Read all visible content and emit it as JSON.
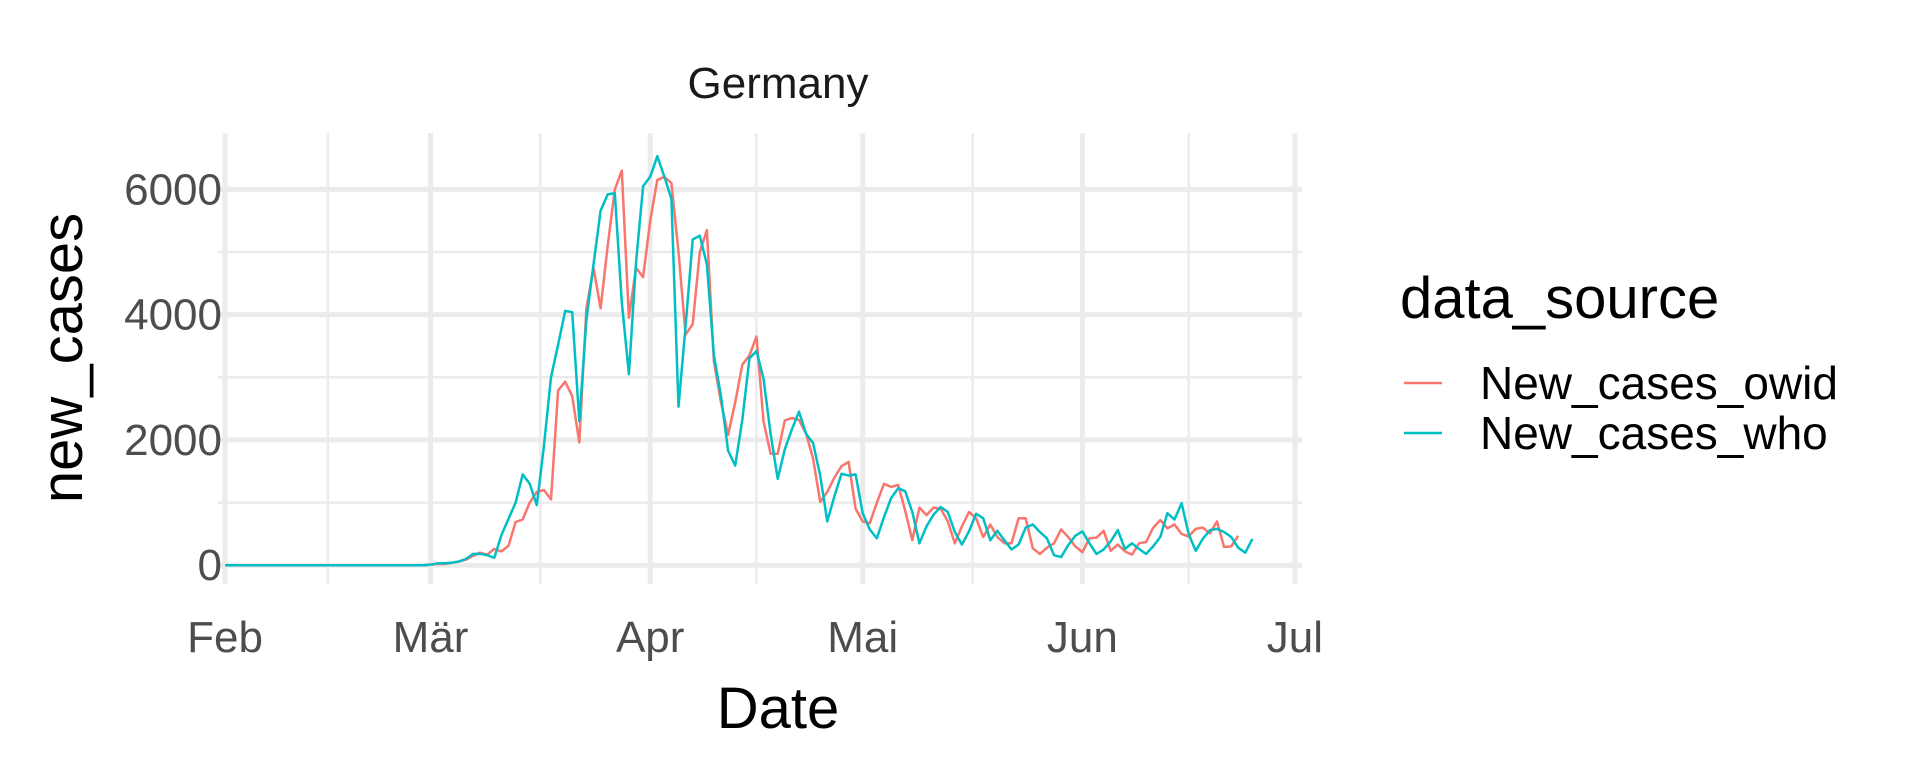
{
  "chart_data": {
    "type": "line",
    "facet_label": "Germany",
    "xlabel": "Date",
    "ylabel": "new_cases",
    "x_tick_labels": [
      "Feb",
      "Mär",
      "Apr",
      "Mai",
      "Jun",
      "Jul"
    ],
    "y_tick_labels": [
      "0",
      "2000",
      "4000",
      "6000"
    ],
    "ylim": [
      -300,
      6900
    ],
    "xlim": [
      "2020-01-31",
      "2020-07-02"
    ],
    "grid": true,
    "legend_position": "right",
    "legend_title": "data_source",
    "series": [
      {
        "name": "New_cases_owid",
        "color": "#F8766D",
        "start_date": "2020-02-01",
        "values": [
          0,
          0,
          0,
          0,
          0,
          0,
          0,
          0,
          0,
          0,
          0,
          0,
          0,
          0,
          0,
          0,
          0,
          0,
          0,
          0,
          0,
          0,
          0,
          0,
          0,
          0,
          0,
          0,
          0,
          10,
          20,
          20,
          40,
          60,
          90,
          150,
          200,
          170,
          260,
          220,
          310,
          690,
          730,
          1000,
          1170,
          1200,
          1050,
          2790,
          2930,
          2700,
          1960,
          4100,
          4750,
          4100,
          5100,
          6000,
          6300,
          3950,
          4750,
          4600,
          5500,
          6150,
          6200,
          6100,
          5000,
          3680,
          3850,
          5000,
          5350,
          3250,
          2600,
          2080,
          2600,
          3200,
          3350,
          3650,
          2300,
          1780,
          1780,
          2310,
          2350,
          2320,
          2100,
          1700,
          1010,
          1170,
          1400,
          1580,
          1650,
          900,
          700,
          670,
          1000,
          1300,
          1250,
          1280,
          870,
          400,
          920,
          800,
          920,
          900,
          700,
          350,
          620,
          850,
          750,
          450,
          650,
          450,
          350,
          350,
          750,
          750,
          270,
          180,
          280,
          350,
          570,
          450,
          300,
          210,
          430,
          440,
          550,
          230,
          330,
          220,
          170,
          350,
          370,
          600,
          720,
          590,
          650,
          500,
          460,
          580,
          600,
          510,
          700,
          290,
          300,
          470
        ]
      },
      {
        "name": "New_cases_who",
        "color": "#00BFC4",
        "start_date": "2020-02-01",
        "values": [
          0,
          0,
          0,
          0,
          0,
          0,
          0,
          0,
          0,
          0,
          0,
          0,
          0,
          0,
          0,
          0,
          0,
          0,
          0,
          0,
          0,
          0,
          0,
          0,
          0,
          0,
          0,
          0,
          0,
          10,
          30,
          30,
          40,
          60,
          100,
          180,
          180,
          160,
          120,
          480,
          740,
          1000,
          1450,
          1300,
          960,
          1900,
          3000,
          3520,
          4060,
          4040,
          2300,
          3920,
          4800,
          5660,
          5920,
          5940,
          4200,
          3050,
          4830,
          6050,
          6200,
          6530,
          6200,
          5850,
          2530,
          3820,
          5200,
          5260,
          4800,
          3350,
          2700,
          1830,
          1590,
          2320,
          3300,
          3420,
          2980,
          2100,
          1380,
          1850,
          2170,
          2450,
          2100,
          1950,
          1430,
          700,
          1100,
          1460,
          1430,
          1450,
          830,
          570,
          430,
          770,
          1070,
          1230,
          1180,
          850,
          350,
          620,
          810,
          930,
          850,
          530,
          330,
          540,
          820,
          750,
          400,
          550,
          400,
          250,
          330,
          600,
          650,
          530,
          430,
          160,
          130,
          320,
          470,
          540,
          350,
          180,
          250,
          380,
          560,
          260,
          350,
          260,
          180,
          300,
          450,
          830,
          730,
          990,
          500,
          230,
          420,
          560,
          580,
          530,
          450,
          280,
          200,
          420
        ]
      }
    ]
  }
}
